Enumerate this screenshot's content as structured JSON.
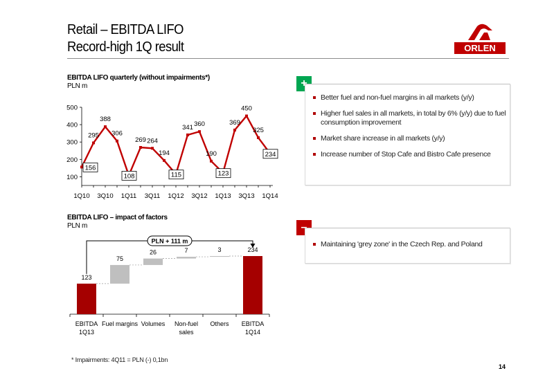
{
  "page": {
    "title_line1": "Retail – EBITDA LIFO",
    "title_line2": "Record-high 1Q result",
    "logo_text": "ORLEN",
    "footnote": "* Impairments: 4Q11 = PLN (-) 0,1bn",
    "page_number": "14"
  },
  "line_chart": {
    "title": "EBITDA LIFO quarterly (without impairments*)",
    "unit": "PLN m"
  },
  "waterfall_chart": {
    "title": "EBITDA LIFO – impact of factors",
    "unit": "PLN m",
    "bracket_label": "PLN + 111 m"
  },
  "positives": {
    "badge": "+",
    "badge_color": "#00a651",
    "items": [
      "Better fuel and non-fuel margins in all markets (y/y)",
      "Higher fuel sales in all markets, in total by 6% (y/y) due to fuel consumption improvement",
      "Market share increase in all markets (y/y)",
      "Increase number of Stop Cafe and Bistro Cafe presence"
    ]
  },
  "negatives": {
    "badge": "–",
    "badge_color": "#c00000",
    "items": [
      "Maintaining 'grey zone' in the Czech Rep. and Poland"
    ]
  },
  "chart_data": [
    {
      "type": "line",
      "title": "EBITDA LIFO quarterly (without impairments*)",
      "ylabel": "PLN m",
      "x": [
        "1Q10",
        "2Q10",
        "3Q10",
        "4Q10",
        "1Q11",
        "2Q11",
        "3Q11",
        "4Q11",
        "1Q12",
        "2Q12",
        "3Q12",
        "4Q12",
        "1Q13",
        "2Q13",
        "3Q13",
        "4Q13",
        "1Q14"
      ],
      "tick_labels": [
        "1Q10",
        "3Q10",
        "1Q11",
        "3Q11",
        "1Q12",
        "3Q12",
        "1Q13",
        "3Q13",
        "1Q14"
      ],
      "values": [
        156,
        295,
        388,
        306,
        108,
        269,
        264,
        194,
        115,
        341,
        360,
        190,
        123,
        369,
        450,
        325,
        234
      ],
      "boxed_labels": [
        0,
        4,
        8,
        12,
        16
      ],
      "yticks": [
        100,
        200,
        300,
        400,
        500
      ],
      "ylim": [
        50,
        500
      ],
      "color": "#c00000"
    },
    {
      "type": "bar",
      "subtype": "waterfall",
      "title": "EBITDA LIFO – impact of factors",
      "ylabel": "PLN m",
      "categories": [
        "EBITDA 1Q13",
        "Fuel margins",
        "Volumes",
        "Non-fuel sales",
        "Others",
        "EBITDA 1Q14"
      ],
      "category_lines": [
        [
          "EBITDA",
          "1Q13"
        ],
        [
          "Fuel margins"
        ],
        [
          "Volumes"
        ],
        [
          "Non-fuel",
          "sales"
        ],
        [
          "Others"
        ],
        [
          "EBITDA",
          "1Q14"
        ]
      ],
      "values": [
        123,
        75,
        26,
        7,
        3,
        234
      ],
      "labels": [
        "123",
        "75",
        "26",
        "7",
        "3",
        "234"
      ],
      "kinds": [
        "total",
        "delta",
        "delta",
        "delta",
        "delta",
        "total"
      ],
      "total_color": "#a50000",
      "delta_color": "#bfbfbf"
    }
  ]
}
